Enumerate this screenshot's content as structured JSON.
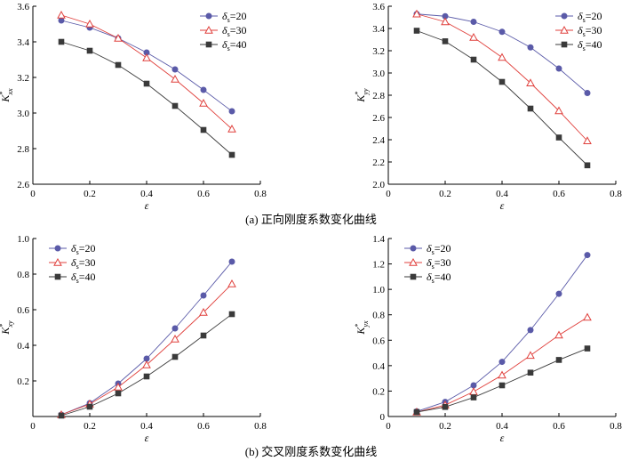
{
  "captions": [
    "(a)  正向刚度系数变化曲线",
    "(b)  交叉刚度系数变化曲线"
  ],
  "colors": {
    "delta20": "#5a5aa8",
    "delta30": "#e0413d",
    "delta40": "#3a3a3a"
  },
  "chart_data": [
    {
      "type": "line",
      "ylabel_main": "K",
      "ylabel_sub": "xx",
      "ylabel_sup": "*",
      "xlabel": "ε",
      "xlim": [
        0,
        0.8
      ],
      "ylim": [
        2.6,
        3.6
      ],
      "xticks": [
        "0",
        "0.2",
        "0.4",
        "0.6",
        "0.8"
      ],
      "yticks": [
        "2.6",
        "2.8",
        "3.0",
        "3.2",
        "3.4",
        "3.6"
      ],
      "legend_position": "top-right",
      "x": [
        0.1,
        0.2,
        0.3,
        0.4,
        0.5,
        0.6,
        0.7
      ],
      "series": [
        {
          "name": "δs=20",
          "name_main": "δ",
          "name_sub": "s",
          "name_rest": "=20",
          "marker": "circle",
          "values": [
            3.52,
            3.48,
            3.42,
            3.34,
            3.245,
            3.13,
            3.01
          ]
        },
        {
          "name": "δs=30",
          "name_main": "δ",
          "name_sub": "s",
          "name_rest": "=30",
          "marker": "triangle",
          "values": [
            3.55,
            3.5,
            3.42,
            3.31,
            3.19,
            3.055,
            2.91
          ]
        },
        {
          "name": "δs=40",
          "name_main": "δ",
          "name_sub": "s",
          "name_rest": "=40",
          "marker": "square",
          "values": [
            3.4,
            3.35,
            3.27,
            3.165,
            3.04,
            2.905,
            2.765
          ]
        }
      ]
    },
    {
      "type": "line",
      "ylabel_main": "K",
      "ylabel_sub": "yy",
      "ylabel_sup": "*",
      "xlabel": "ε",
      "xlim": [
        0,
        0.8
      ],
      "ylim": [
        2.0,
        3.6
      ],
      "xticks": [
        "0",
        "0.2",
        "0.4",
        "0.6",
        "0.8"
      ],
      "yticks": [
        "2.0",
        "2.2",
        "2.4",
        "2.6",
        "2.8",
        "3.0",
        "3.2",
        "3.4",
        "3.6"
      ],
      "legend_position": "top-right",
      "x": [
        0.1,
        0.2,
        0.3,
        0.4,
        0.5,
        0.6,
        0.7
      ],
      "series": [
        {
          "name": "δs=20",
          "name_main": "δ",
          "name_sub": "s",
          "name_rest": "=20",
          "marker": "circle",
          "values": [
            3.53,
            3.51,
            3.46,
            3.37,
            3.23,
            3.04,
            2.82
          ]
        },
        {
          "name": "δs=30",
          "name_main": "δ",
          "name_sub": "s",
          "name_rest": "=30",
          "marker": "triangle",
          "values": [
            3.53,
            3.46,
            3.32,
            3.14,
            2.91,
            2.66,
            2.39
          ]
        },
        {
          "name": "δs=40",
          "name_main": "δ",
          "name_sub": "s",
          "name_rest": "=40",
          "marker": "square",
          "values": [
            3.38,
            3.285,
            3.12,
            2.92,
            2.68,
            2.42,
            2.17
          ]
        }
      ]
    },
    {
      "type": "line",
      "ylabel_main": "K",
      "ylabel_sub": "xy",
      "ylabel_sup": "*",
      "xlabel": "ε",
      "xlim": [
        0,
        0.8
      ],
      "ylim": [
        0,
        1.0
      ],
      "xticks": [
        "0",
        "0.2",
        "0.4",
        "0.6",
        "0.8"
      ],
      "yticks": [
        "",
        "0.2",
        "0.4",
        "0.6",
        "0.8",
        "1.0"
      ],
      "legend_position": "top-left",
      "x": [
        0.1,
        0.2,
        0.3,
        0.4,
        0.5,
        0.6,
        0.7
      ],
      "series": [
        {
          "name": "δs=20",
          "name_main": "δ",
          "name_sub": "s",
          "name_rest": "=20",
          "marker": "circle",
          "values": [
            0.01,
            0.075,
            0.185,
            0.325,
            0.495,
            0.68,
            0.87
          ]
        },
        {
          "name": "δs=30",
          "name_main": "δ",
          "name_sub": "s",
          "name_rest": "=30",
          "marker": "triangle",
          "values": [
            0.01,
            0.07,
            0.165,
            0.29,
            0.435,
            0.585,
            0.745
          ]
        },
        {
          "name": "δs=40",
          "name_main": "δ",
          "name_sub": "s",
          "name_rest": "=40",
          "marker": "square",
          "values": [
            0.005,
            0.055,
            0.13,
            0.225,
            0.335,
            0.455,
            0.575
          ]
        }
      ]
    },
    {
      "type": "line",
      "ylabel_main": "K",
      "ylabel_sub": "yx",
      "ylabel_sup": "*",
      "xlabel": "ε",
      "xlim": [
        0,
        0.8
      ],
      "ylim": [
        0,
        1.4
      ],
      "xticks": [
        "0",
        "0.2",
        "0.4",
        "0.6",
        "0.8"
      ],
      "yticks": [
        "0",
        "0.2",
        "0.4",
        "0.6",
        "0.8",
        "1.0",
        "1.2",
        "1.4"
      ],
      "legend_position": "top-left",
      "x": [
        0.1,
        0.2,
        0.3,
        0.4,
        0.5,
        0.6,
        0.7
      ],
      "series": [
        {
          "name": "δs=20",
          "name_main": "δ",
          "name_sub": "s",
          "name_rest": "=20",
          "marker": "circle",
          "values": [
            0.04,
            0.115,
            0.245,
            0.43,
            0.68,
            0.965,
            1.27
          ]
        },
        {
          "name": "δs=30",
          "name_main": "δ",
          "name_sub": "s",
          "name_rest": "=30",
          "marker": "triangle",
          "values": [
            0.035,
            0.09,
            0.195,
            0.325,
            0.48,
            0.64,
            0.78
          ]
        },
        {
          "name": "δs=40",
          "name_main": "δ",
          "name_sub": "s",
          "name_rest": "=40",
          "marker": "square",
          "values": [
            0.035,
            0.075,
            0.15,
            0.245,
            0.345,
            0.445,
            0.535
          ]
        }
      ]
    }
  ]
}
